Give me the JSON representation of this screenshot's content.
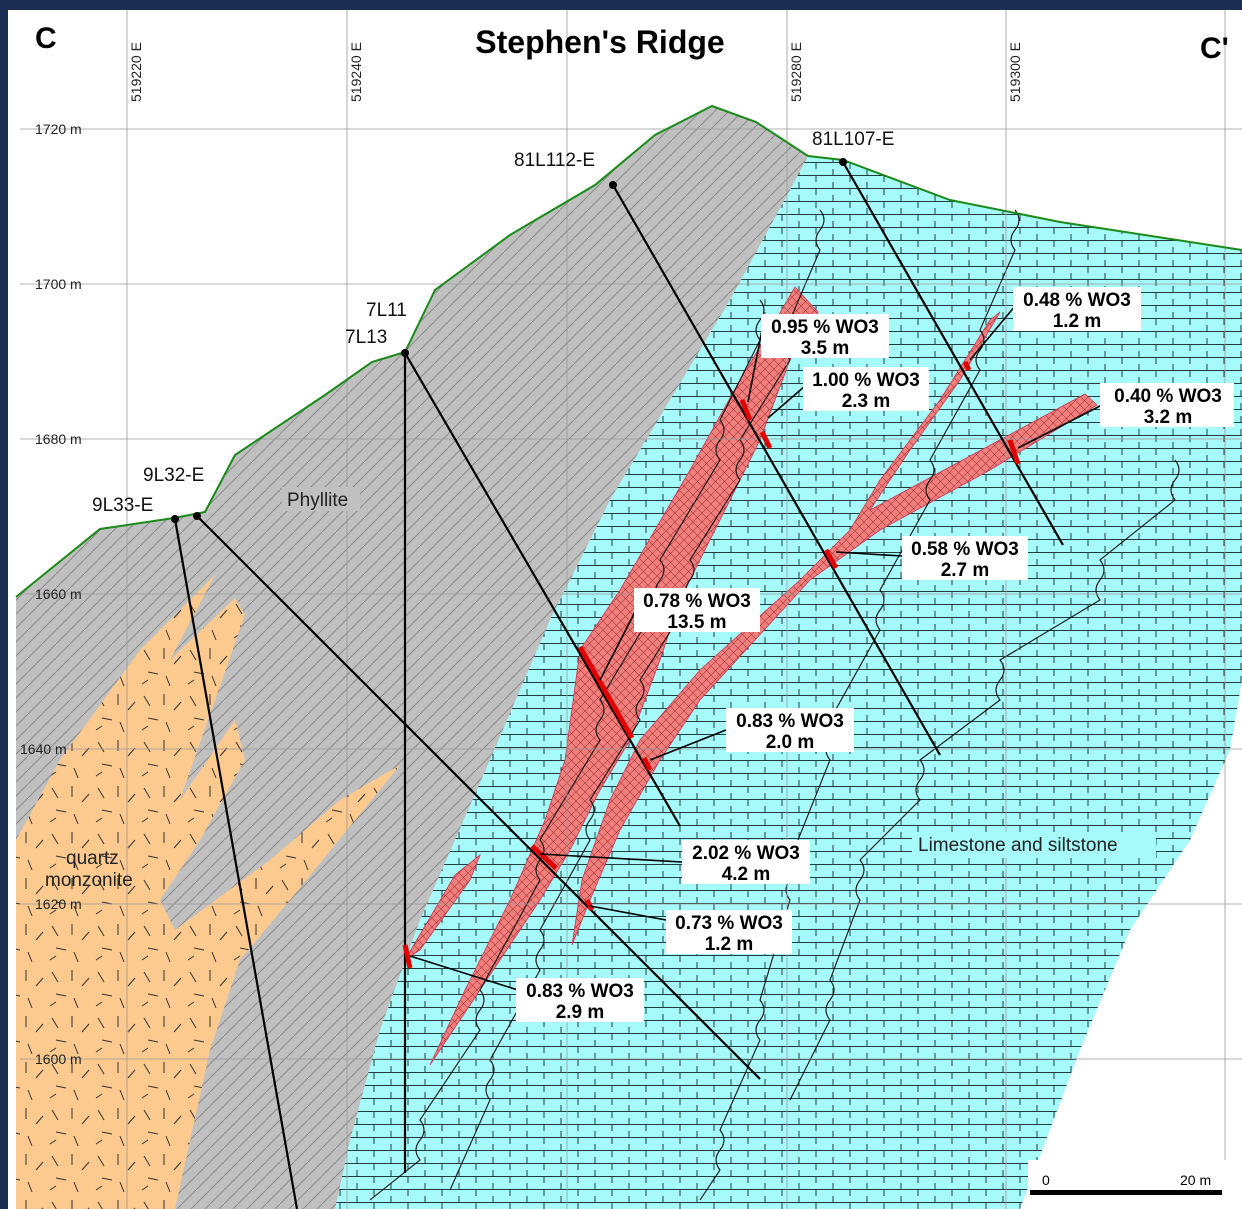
{
  "section": {
    "title": "Stephen's Ridge",
    "start_label": "C",
    "end_label": "C'"
  },
  "eastings": [
    "519220 E",
    "519240 E",
    "519280 E",
    "519300 E"
  ],
  "elevations": [
    "1720 m",
    "1700 m",
    "1680 m",
    "1660 m",
    "1640 m",
    "1620 m",
    "1600 m"
  ],
  "drill_holes": [
    "9L33-E",
    "9L32-E",
    "7L13",
    "7L11",
    "81L112-E",
    "81L107-E"
  ],
  "units": {
    "phyllite": "Phyllite",
    "limestone": "Limestone and siltstone",
    "monzonite_line1": "quartz",
    "monzonite_line2": "monzonite"
  },
  "intercepts": [
    {
      "grade": "0.95 % WO3",
      "length": "3.5 m"
    },
    {
      "grade": "1.00 % WO3",
      "length": "2.3 m"
    },
    {
      "grade": "0.48 % WO3",
      "length": "1.2 m"
    },
    {
      "grade": "0.40 % WO3",
      "length": "3.2 m"
    },
    {
      "grade": "0.58 % WO3",
      "length": "2.7 m"
    },
    {
      "grade": "0.78 % WO3",
      "length": "13.5 m"
    },
    {
      "grade": "0.83 % WO3",
      "length": "2.0 m"
    },
    {
      "grade": "2.02 % WO3",
      "length": "4.2 m"
    },
    {
      "grade": "0.73 % WO3",
      "length": "1.2 m"
    },
    {
      "grade": "0.83 % WO3",
      "length": "2.9 m"
    }
  ],
  "scale_bar": {
    "start": "0",
    "end": "20 m"
  },
  "colors": {
    "phyllite": "#c0c0c0",
    "limestone": "#a6fafa",
    "monzonite": "#fcc98f",
    "mineralized_zone": "#f0807e",
    "intercept": "#e00000",
    "surface": "#1a8a1a"
  }
}
